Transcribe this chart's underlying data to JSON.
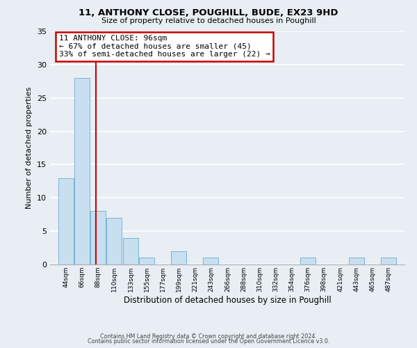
{
  "title": "11, ANTHONY CLOSE, POUGHILL, BUDE, EX23 9HD",
  "subtitle": "Size of property relative to detached houses in Poughill",
  "xlabel": "Distribution of detached houses by size in Poughill",
  "ylabel": "Number of detached properties",
  "bar_color": "#c8dff0",
  "bar_edge_color": "#7ab4d4",
  "bin_labels": [
    "44sqm",
    "66sqm",
    "88sqm",
    "110sqm",
    "133sqm",
    "155sqm",
    "177sqm",
    "199sqm",
    "221sqm",
    "243sqm",
    "266sqm",
    "288sqm",
    "310sqm",
    "332sqm",
    "354sqm",
    "376sqm",
    "398sqm",
    "421sqm",
    "443sqm",
    "465sqm",
    "487sqm"
  ],
  "bin_edges": [
    44,
    66,
    88,
    110,
    133,
    155,
    177,
    199,
    221,
    243,
    266,
    288,
    310,
    332,
    354,
    376,
    398,
    421,
    443,
    465,
    487
  ],
  "counts": [
    13,
    28,
    8,
    7,
    4,
    1,
    0,
    2,
    0,
    1,
    0,
    0,
    0,
    0,
    0,
    1,
    0,
    0,
    1,
    0,
    1
  ],
  "property_value": 96,
  "annotation_title": "11 ANTHONY CLOSE: 96sqm",
  "annotation_line1": "← 67% of detached houses are smaller (45)",
  "annotation_line2": "33% of semi-detached houses are larger (22) →",
  "annotation_box_color": "#ffffff",
  "annotation_box_edge_color": "#cc0000",
  "vline_color": "#cc0000",
  "ylim": [
    0,
    35
  ],
  "yticks": [
    0,
    5,
    10,
    15,
    20,
    25,
    30,
    35
  ],
  "footer1": "Contains HM Land Registry data © Crown copyright and database right 2024.",
  "footer2": "Contains public sector information licensed under the Open Government Licence v3.0.",
  "fig_background_color": "#e8eef4",
  "plot_background_color": "#e8eef4",
  "grid_color": "#ffffff"
}
